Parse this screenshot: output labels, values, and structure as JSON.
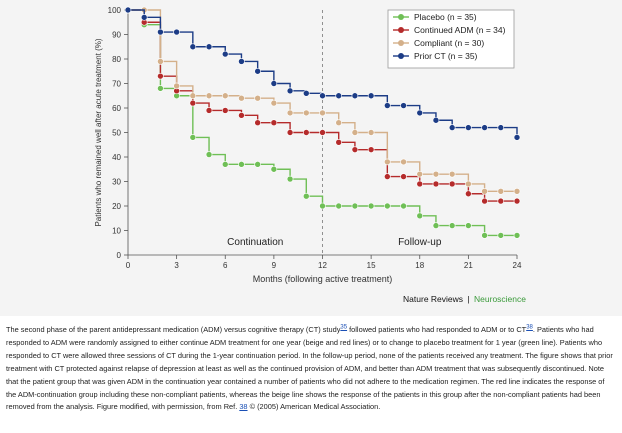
{
  "chart_data": {
    "type": "line",
    "title": "",
    "xlabel": "Months (following active treatment)",
    "ylabel": "Patients who remained well after acute treatment (%)",
    "xlim": [
      0,
      24
    ],
    "ylim": [
      0,
      100
    ],
    "xticks": [
      0,
      3,
      6,
      9,
      12,
      15,
      18,
      21,
      24
    ],
    "yticks": [
      0,
      10,
      20,
      30,
      40,
      50,
      60,
      70,
      80,
      90,
      100
    ],
    "grid": false,
    "legend_position": "top-right",
    "divider_x": 12,
    "phase_labels": [
      "Continuation",
      "Follow-up"
    ],
    "series": [
      {
        "name": "Placebo (n = 35)",
        "color": "#6fbf56",
        "x": [
          0,
          1,
          2,
          3,
          4,
          5,
          6,
          7,
          8,
          9,
          10,
          11,
          12,
          13,
          14,
          15,
          16,
          17,
          18,
          19,
          20,
          21,
          22,
          23,
          24
        ],
        "y": [
          100,
          94,
          68,
          65,
          48,
          41,
          37,
          37,
          37,
          35,
          31,
          24,
          20,
          20,
          20,
          20,
          20,
          20,
          16,
          12,
          12,
          12,
          8,
          8,
          8
        ]
      },
      {
        "name": "Continued ADM (n = 34)",
        "color": "#b52b2b",
        "x": [
          0,
          1,
          2,
          3,
          4,
          5,
          6,
          7,
          8,
          9,
          10,
          11,
          12,
          13,
          14,
          15,
          16,
          17,
          18,
          19,
          20,
          21,
          22,
          23,
          24
        ],
        "y": [
          100,
          95,
          73,
          67,
          62,
          59,
          59,
          57,
          54,
          54,
          50,
          50,
          50,
          46,
          43,
          43,
          32,
          32,
          29,
          29,
          29,
          25,
          22,
          22,
          22
        ]
      },
      {
        "name": "Compliant (n = 30)",
        "color": "#d4b08a",
        "x": [
          0,
          1,
          2,
          3,
          4,
          5,
          6,
          7,
          8,
          9,
          10,
          11,
          12,
          13,
          14,
          15,
          16,
          17,
          18,
          19,
          20,
          21,
          22,
          23,
          24
        ],
        "y": [
          100,
          100,
          79,
          69,
          65,
          65,
          65,
          64,
          64,
          62,
          58,
          58,
          58,
          54,
          50,
          50,
          38,
          38,
          33,
          33,
          33,
          29,
          26,
          26,
          26
        ]
      },
      {
        "name": "Prior CT (n = 35)",
        "color": "#1c3c86",
        "x": [
          0,
          1,
          2,
          3,
          4,
          5,
          6,
          7,
          8,
          9,
          10,
          11,
          12,
          13,
          14,
          15,
          16,
          17,
          18,
          19,
          20,
          21,
          22,
          23,
          24
        ],
        "y": [
          100,
          97,
          91,
          91,
          85,
          85,
          82,
          79,
          75,
          70,
          67,
          66,
          65,
          65,
          65,
          65,
          61,
          61,
          58,
          55,
          52,
          52,
          52,
          52,
          48
        ]
      }
    ]
  },
  "credit": {
    "journal": "Nature Reviews",
    "separator": "|",
    "section": "Neuroscience"
  },
  "caption": {
    "p1": "The second phase of the parent antidepressant medication (ADM) versus cognitive therapy (CT) study",
    "ref1": "35",
    "p2": " followed patients who had responded to ADM or to CT",
    "ref2": "38",
    "p3": ". Patients who had responded to ADM were randomly assigned to either continue ADM treatment for one year (beige and red lines) or to change to placebo treatment for 1 year (green line). Patients who responded to CT were allowed three sessions of CT during the 1-year continuation period. In the follow-up period, none of the patients received any treatment. The figure shows that prior treatment with CT protected against relapse of depression at least as well as the continued provision of ADM, and better than ADM treatment that was subsequently discontinued. Note that the patient group that was given ADM in the continuation year contained a number of patients who did not adhere to the medication regimen. The red line indicates the response of the ADM-continuation group including these non-compliant patients, whereas the beige line shows the response of the patients in this group after the non-compliant patients had been removed from the analysis. Figure modified, with permission, from Ref. ",
    "ref3": "38",
    "p4": " © (2005) American Medical Association."
  }
}
